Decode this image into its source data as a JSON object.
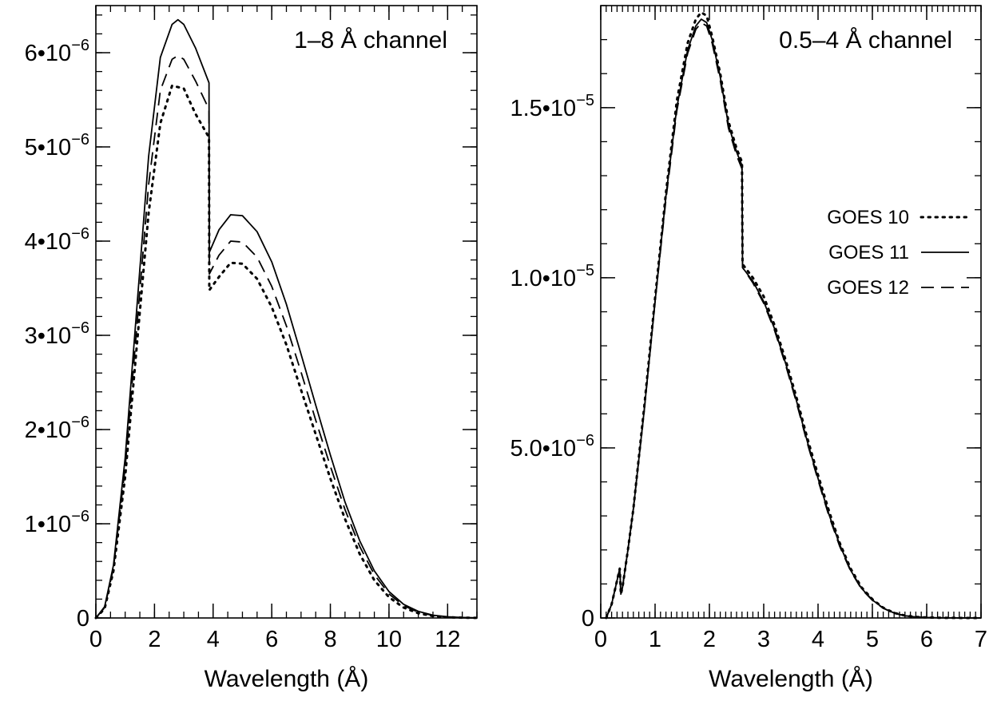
{
  "chart_data": [
    {
      "type": "line",
      "title": "1–8 Å channel",
      "xlabel": "Wavelength (Å)",
      "ylabel": "",
      "xlim": [
        0,
        13
      ],
      "ylim": [
        0,
        6.5e-06
      ],
      "xticks": [
        0,
        2,
        4,
        6,
        8,
        10,
        12
      ],
      "xtick_labels": [
        "0",
        "2",
        "4",
        "6",
        "8",
        "10",
        "12"
      ],
      "yticks": [
        0,
        1e-06,
        2e-06,
        3e-06,
        4e-06,
        5e-06,
        6e-06
      ],
      "ytick_labels": [
        {
          "mantissa": "0",
          "exponent": ""
        },
        {
          "mantissa": "1•10",
          "exponent": "−6"
        },
        {
          "mantissa": "2•10",
          "exponent": "−6"
        },
        {
          "mantissa": "3•10",
          "exponent": "−6"
        },
        {
          "mantissa": "4•10",
          "exponent": "−6"
        },
        {
          "mantissa": "5•10",
          "exponent": "−6"
        },
        {
          "mantissa": "6•10",
          "exponent": "−6"
        }
      ],
      "x_minor_step": 0.5,
      "y_minor_step": 2e-07,
      "grid": false,
      "series": [
        {
          "style": "dotted",
          "x": [
            0,
            0.3,
            0.6,
            1.0,
            1.4,
            1.8,
            2.2,
            2.6,
            3.0,
            3.4,
            3.86,
            3.87,
            4.2,
            4.6,
            5.0,
            5.5,
            6.0,
            6.5,
            7.0,
            7.5,
            8.0,
            8.5,
            9.0,
            9.5,
            10.0,
            10.5,
            11.0,
            11.5,
            12.0,
            12.5,
            13.0
          ],
          "y": [
            0,
            1e-07,
            5e-07,
            1.5e-06,
            2.9e-06,
            4.3e-06,
            5.25e-06,
            5.65e-06,
            5.62e-06,
            5.35e-06,
            5.1e-06,
            3.48e-06,
            3.62e-06,
            3.77e-06,
            3.76e-06,
            3.6e-06,
            3.3e-06,
            2.9e-06,
            2.42e-06,
            1.95e-06,
            1.48e-06,
            1.05e-06,
            6.8e-07,
            4e-07,
            2.2e-07,
            1.1e-07,
            5e-08,
            2e-08,
            8e-09,
            3e-09,
            1e-09
          ]
        },
        {
          "style": "solid",
          "x": [
            0,
            0.3,
            0.6,
            1.0,
            1.4,
            1.8,
            2.2,
            2.6,
            2.8,
            3.0,
            3.4,
            3.86,
            3.87,
            4.2,
            4.6,
            5.0,
            5.5,
            6.0,
            6.5,
            7.0,
            7.5,
            8.0,
            8.5,
            9.0,
            9.5,
            10.0,
            10.5,
            11.0,
            11.5,
            12.0,
            12.5,
            13.0
          ],
          "y": [
            0,
            1.2e-07,
            5.6e-07,
            1.7e-06,
            3.3e-06,
            4.9e-06,
            5.95e-06,
            6.3e-06,
            6.35e-06,
            6.3e-06,
            6.05e-06,
            5.68e-06,
            3.88e-06,
            4.12e-06,
            4.28e-06,
            4.27e-06,
            4.1e-06,
            3.78e-06,
            3.33e-06,
            2.8e-06,
            2.26e-06,
            1.73e-06,
            1.23e-06,
            8.2e-07,
            5e-07,
            2.8e-07,
            1.45e-07,
            7e-08,
            3e-08,
            1.2e-08,
            5e-09,
            1e-09
          ]
        },
        {
          "style": "dashed",
          "x": [
            0,
            0.3,
            0.6,
            1.0,
            1.4,
            1.8,
            2.2,
            2.6,
            2.8,
            3.0,
            3.4,
            3.86,
            3.87,
            4.2,
            4.6,
            5.0,
            5.5,
            6.0,
            6.5,
            7.0,
            7.5,
            8.0,
            8.5,
            9.0,
            9.5,
            10.0,
            10.5,
            11.0,
            11.5,
            12.0,
            12.5,
            13.0
          ],
          "y": [
            0,
            1.1e-07,
            5.3e-07,
            1.6e-06,
            3.1e-06,
            4.6e-06,
            5.6e-06,
            5.93e-06,
            5.97e-06,
            5.93e-06,
            5.7e-06,
            5.4e-06,
            3.65e-06,
            3.85e-06,
            4e-06,
            3.99e-06,
            3.83e-06,
            3.52e-06,
            3.1e-06,
            2.61e-06,
            2.1e-06,
            1.61e-06,
            1.15e-06,
            7.6e-07,
            4.6e-07,
            2.55e-07,
            1.3e-07,
            6.2e-08,
            2.6e-08,
            1e-08,
            4e-09,
            1e-09
          ]
        }
      ]
    },
    {
      "type": "line",
      "title": "0.5–4 Å channel",
      "xlabel": "Wavelength (Å)",
      "ylabel": "",
      "xlim": [
        0,
        7
      ],
      "ylim": [
        0,
        1.8e-05
      ],
      "xticks": [
        0,
        1,
        2,
        3,
        4,
        5,
        6,
        7
      ],
      "xtick_labels": [
        "0",
        "1",
        "2",
        "3",
        "4",
        "5",
        "6",
        "7"
      ],
      "yticks": [
        0,
        5e-06,
        1e-05,
        1.5e-05
      ],
      "ytick_labels": [
        {
          "mantissa": "0",
          "exponent": ""
        },
        {
          "mantissa": "5.0•10",
          "exponent": "−6"
        },
        {
          "mantissa": "1.0•10",
          "exponent": "−5"
        },
        {
          "mantissa": "1.5•10",
          "exponent": "−5"
        }
      ],
      "x_minor_step": 0.1,
      "y_minor_step": 1e-06,
      "grid": false,
      "legend": {
        "position": "right",
        "entries": [
          {
            "label": "GOES 10",
            "style": "dotted"
          },
          {
            "label": "GOES 11",
            "style": "solid"
          },
          {
            "label": "GOES 12",
            "style": "dashed"
          }
        ]
      },
      "series": [
        {
          "name": "GOES 10",
          "style": "dotted",
          "x": [
            0.1,
            0.2,
            0.35,
            0.37,
            0.4,
            0.5,
            0.6,
            0.8,
            1.0,
            1.2,
            1.4,
            1.6,
            1.75,
            1.85,
            1.95,
            2.05,
            2.2,
            2.35,
            2.5,
            2.6,
            2.61,
            2.8,
            3.0,
            3.2,
            3.4,
            3.6,
            3.8,
            4.0,
            4.2,
            4.4,
            4.6,
            4.8,
            5.0,
            5.2,
            5.4,
            5.6,
            5.8,
            6.0,
            6.2,
            6.4,
            6.6,
            6.8,
            7.0
          ],
          "y": [
            0,
            4e-07,
            1.45e-06,
            7e-07,
            9e-07,
            2e-06,
            3.2e-06,
            6.2e-06,
            9.4e-06,
            1.25e-05,
            1.52e-05,
            1.69e-05,
            1.76e-05,
            1.78e-05,
            1.77e-05,
            1.71e-05,
            1.6e-05,
            1.46e-05,
            1.38e-05,
            1.34e-05,
            1.04e-05,
            1e-05,
            9.45e-06,
            8.6e-06,
            7.6e-06,
            6.5e-06,
            5.3e-06,
            4.2e-06,
            3.15e-06,
            2.2e-06,
            1.45e-06,
            9e-07,
            5.5e-07,
            3e-07,
            1.5e-07,
            7e-08,
            3e-08,
            1.5e-08,
            7e-09,
            3e-09,
            1e-09,
            5e-10,
            0
          ]
        },
        {
          "name": "GOES 11",
          "style": "solid",
          "x": [
            0.1,
            0.2,
            0.35,
            0.37,
            0.4,
            0.5,
            0.6,
            0.8,
            1.0,
            1.2,
            1.4,
            1.6,
            1.75,
            1.85,
            1.95,
            2.05,
            2.2,
            2.35,
            2.5,
            2.6,
            2.61,
            2.8,
            3.0,
            3.2,
            3.4,
            3.6,
            3.8,
            4.0,
            4.2,
            4.4,
            4.6,
            4.8,
            5.0,
            5.2,
            5.4,
            5.6,
            5.8,
            6.0,
            6.2,
            6.4,
            6.6,
            6.8,
            7.0
          ],
          "y": [
            0,
            4e-07,
            1.45e-06,
            7e-07,
            9e-07,
            2e-06,
            3.2e-06,
            6.1e-06,
            9.3e-06,
            1.24e-05,
            1.5e-05,
            1.67e-05,
            1.74e-05,
            1.76e-05,
            1.75e-05,
            1.7e-05,
            1.59e-05,
            1.45e-05,
            1.37e-05,
            1.33e-05,
            1.03e-05,
            9.9e-06,
            9.3e-06,
            8.5e-06,
            7.5e-06,
            6.4e-06,
            5.2e-06,
            4.1e-06,
            3.05e-06,
            2.15e-06,
            1.4e-06,
            8.7e-07,
            5.3e-07,
            2.9e-07,
            1.45e-07,
            6.5e-08,
            2.8e-08,
            1.4e-08,
            6e-09,
            3e-09,
            1e-09,
            5e-10,
            0
          ]
        },
        {
          "name": "GOES 12",
          "style": "dashed",
          "x": [
            0.1,
            0.2,
            0.35,
            0.37,
            0.4,
            0.5,
            0.6,
            0.8,
            1.0,
            1.2,
            1.4,
            1.6,
            1.75,
            1.85,
            1.95,
            2.05,
            2.2,
            2.35,
            2.5,
            2.6,
            2.61,
            2.8,
            3.0,
            3.2,
            3.4,
            3.6,
            3.8,
            4.0,
            4.2,
            4.4,
            4.6,
            4.8,
            5.0,
            5.2,
            5.4,
            5.6,
            5.8,
            6.0,
            6.2,
            6.4,
            6.6,
            6.8,
            7.0
          ],
          "y": [
            0,
            4e-07,
            1.45e-06,
            7e-07,
            9e-07,
            2e-06,
            3.2e-06,
            6.1e-06,
            9.3e-06,
            1.23e-05,
            1.49e-05,
            1.66e-05,
            1.73e-05,
            1.75e-05,
            1.74e-05,
            1.69e-05,
            1.58e-05,
            1.44e-05,
            1.36e-05,
            1.32e-05,
            1.03e-05,
            9.85e-06,
            9.25e-06,
            8.45e-06,
            7.45e-06,
            6.35e-06,
            5.15e-06,
            4.05e-06,
            3e-06,
            2.1e-06,
            1.38e-06,
            8.5e-07,
            5.2e-07,
            2.85e-07,
            1.4e-07,
            6.3e-08,
            2.7e-08,
            1.3e-08,
            6e-09,
            3e-09,
            1e-09,
            5e-10,
            0
          ]
        }
      ]
    }
  ]
}
